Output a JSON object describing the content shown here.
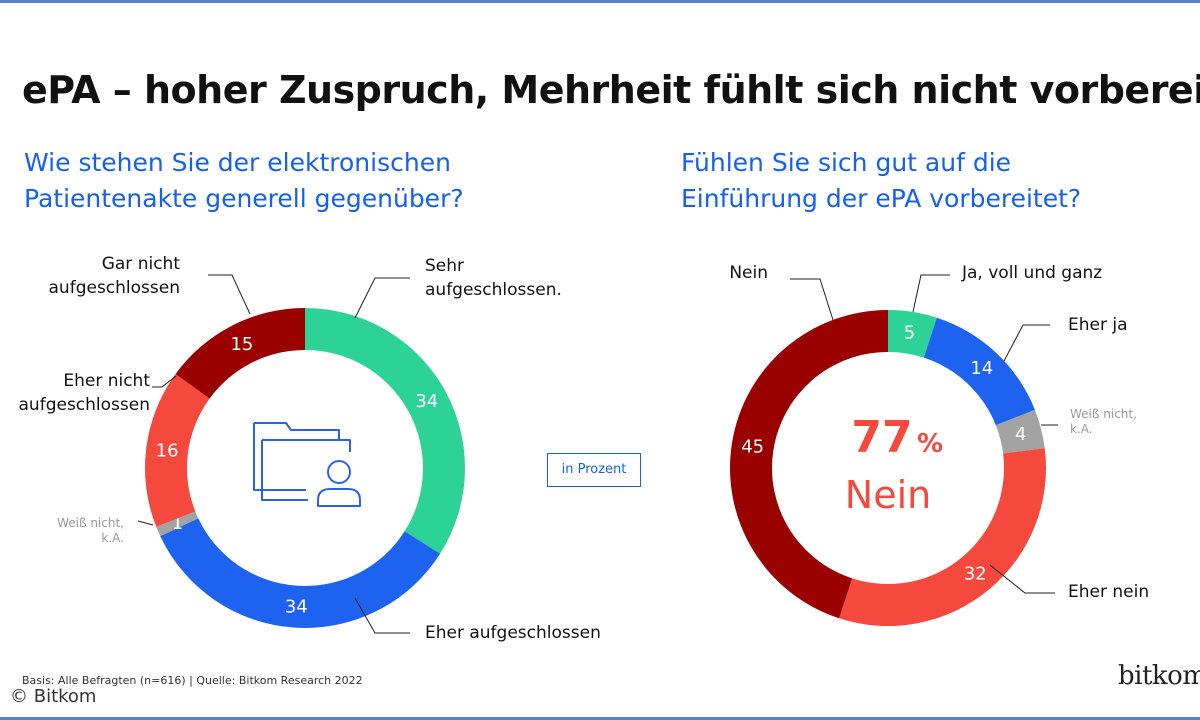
{
  "title": "ePA – hoher Zuspruch, Mehrheit fühlt sich nicht vorbereitet",
  "unit_label": "in Prozent",
  "footer": {
    "basis": "Basis: Alle Befragten (n=616) | Quelle: Bitkom Research 2022",
    "copyright": "© Bitkom",
    "logo": "bitkom"
  },
  "colors": {
    "question": "#1560f0",
    "dark_red": "#9b0000",
    "red": "#f5493d",
    "gray": "#a3a3a3",
    "blue": "#1e62f0",
    "green": "#2dd396",
    "big_label": "#f5493d"
  },
  "chart_data": [
    {
      "type": "pie",
      "donut": true,
      "title": "Wie stehen Sie der elektronischen Patientenakte generell gegenüber?",
      "title_lines": [
        "Wie stehen Sie der elektronischen",
        "Patientenakte generell gegenüber?"
      ],
      "unit": "in Prozent",
      "center_icon": "folder-person-icon",
      "slices": [
        {
          "label_lines": [
            "Sehr",
            "aufgeschlossen."
          ],
          "value": 34,
          "color": "#2dd396"
        },
        {
          "label_lines": [
            "Eher aufgeschlossen"
          ],
          "value": 34,
          "color": "#1e62f0"
        },
        {
          "label_lines": [
            "Weiß nicht,",
            "k.A."
          ],
          "value": 1,
          "color": "#a3a3a3"
        },
        {
          "label_lines": [
            "Eher nicht",
            "aufgeschlossen"
          ],
          "value": 16,
          "color": "#f5493d"
        },
        {
          "label_lines": [
            "Gar nicht",
            "aufgeschlossen"
          ],
          "value": 15,
          "color": "#9b0000"
        }
      ]
    },
    {
      "type": "pie",
      "donut": true,
      "title": "Fühlen Sie sich gut auf die Einführung der ePA vorbereitet?",
      "title_lines": [
        "Fühlen Sie sich gut auf die",
        "Einführung der ePA vorbereitet?"
      ],
      "unit": "in Prozent",
      "center": {
        "value": "77",
        "unit": "%",
        "label": "Nein"
      },
      "slices": [
        {
          "label_lines": [
            "Ja, voll und ganz"
          ],
          "value": 5,
          "color": "#2dd396"
        },
        {
          "label_lines": [
            "Eher ja"
          ],
          "value": 14,
          "color": "#1e62f0"
        },
        {
          "label_lines": [
            "Weiß nicht,",
            "k.A."
          ],
          "value": 4,
          "color": "#a3a3a3"
        },
        {
          "label_lines": [
            "Eher nein"
          ],
          "value": 32,
          "color": "#f5493d"
        },
        {
          "label_lines": [
            "Nein"
          ],
          "value": 45,
          "color": "#9b0000"
        }
      ]
    }
  ]
}
